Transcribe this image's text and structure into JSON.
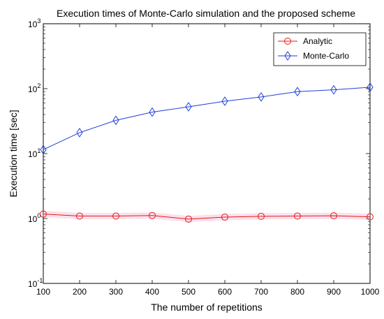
{
  "chart_data": {
    "type": "line",
    "title": "Execution times of Monte-Carlo simulation and the proposed scheme",
    "xlabel": "The number of repetitions",
    "ylabel": "Execution time [sec]",
    "x": [
      100,
      200,
      300,
      400,
      500,
      600,
      700,
      800,
      900,
      1000
    ],
    "xlim": [
      100,
      1000
    ],
    "ylim": [
      0.1,
      1000
    ],
    "yscale": "log",
    "yticks": [
      {
        "base": "10",
        "exp": "-1",
        "value": 0.1
      },
      {
        "base": "10",
        "exp": "0",
        "value": 1
      },
      {
        "base": "10",
        "exp": "1",
        "value": 10
      },
      {
        "base": "10",
        "exp": "2",
        "value": 100
      },
      {
        "base": "10",
        "exp": "3",
        "value": 1000
      }
    ],
    "xticks": [
      "100",
      "200",
      "300",
      "400",
      "500",
      "600",
      "700",
      "800",
      "900",
      "1000"
    ],
    "grid": false,
    "legend_position": "top-right",
    "series": [
      {
        "name": "Analytic",
        "color": "#e41a1c",
        "marker": "circle",
        "values": [
          1.17,
          1.09,
          1.09,
          1.11,
          0.98,
          1.05,
          1.08,
          1.09,
          1.1,
          1.06
        ]
      },
      {
        "name": "Monte-Carlo",
        "color": "#1f3fd8",
        "marker": "diamond",
        "values": [
          11.5,
          21,
          32.5,
          43.5,
          52.5,
          64,
          74.5,
          90,
          96,
          105
        ]
      }
    ]
  }
}
